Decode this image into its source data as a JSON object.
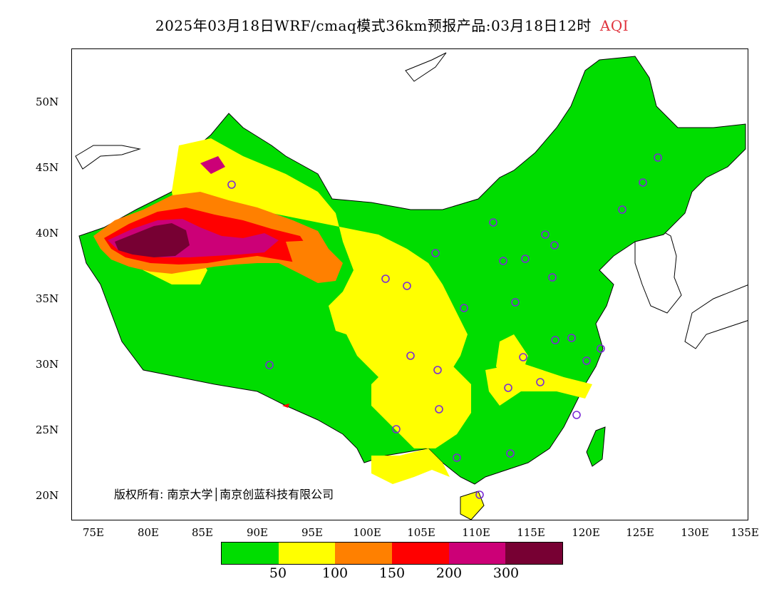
{
  "title": {
    "main": "2025年03月18日WRF/cmaq模式36km预报产品:03月18日12时",
    "variable": "AQI",
    "variable_color": "#e0323c"
  },
  "map": {
    "lat_labels": [
      "50N",
      "45N",
      "40N",
      "35N",
      "30N",
      "25N",
      "20N"
    ],
    "lon_labels": [
      "75E",
      "80E",
      "85E",
      "90E",
      "95E",
      "100E",
      "105E",
      "110E",
      "115E",
      "120E",
      "125E",
      "130E",
      "135E"
    ],
    "copyright": "版权所有: 南京大学│南京创蓝科技有限公司",
    "fill_colors": {
      "green": "#00dd00",
      "yellow": "#ffff00",
      "orange": "#ff8000",
      "red": "#ff0000",
      "magenta": "#cc0077",
      "maroon": "#770033"
    }
  },
  "legend": {
    "colors": [
      "#00dd00",
      "#ffff00",
      "#ff8000",
      "#ff0000",
      "#cc0077",
      "#770033"
    ],
    "labels": [
      "50",
      "100",
      "150",
      "200",
      "300"
    ]
  }
}
